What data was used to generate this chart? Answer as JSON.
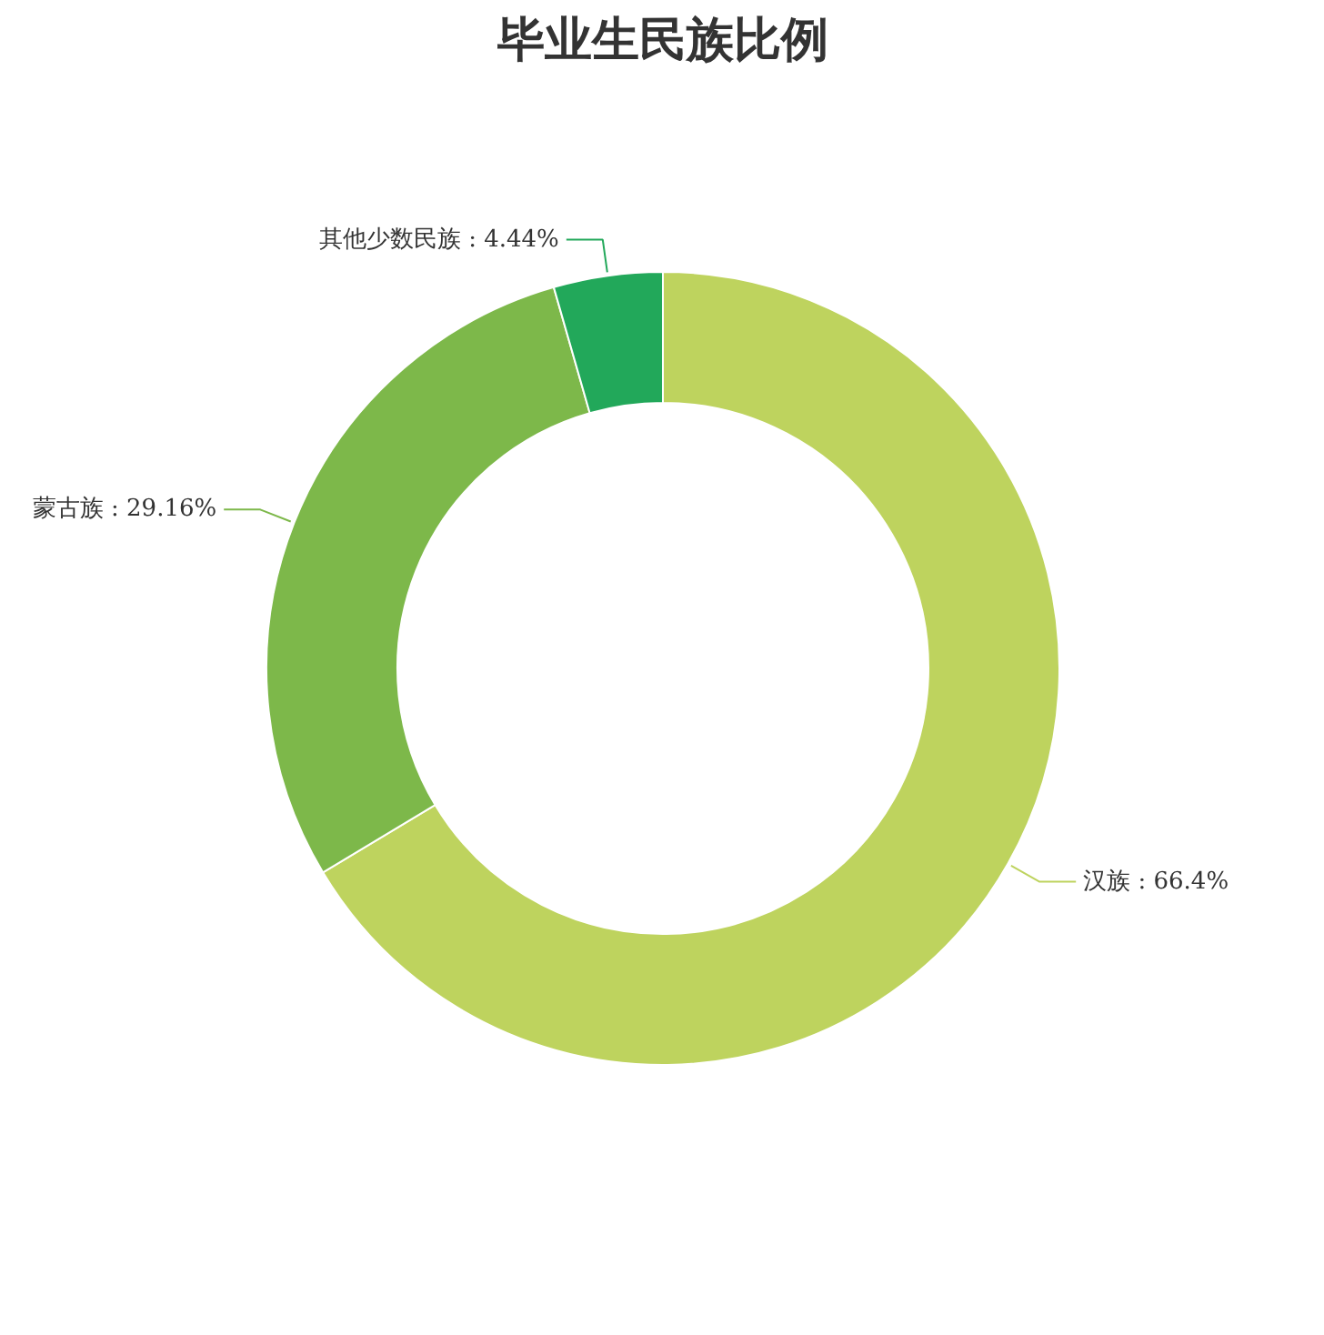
{
  "chart_data": {
    "type": "donut",
    "title": "毕业生民族比例",
    "categories": [
      "汉族",
      "蒙古族",
      "其他少数民族"
    ],
    "values": [
      66.4,
      29.16,
      4.44
    ],
    "value_labels": [
      "66.4%",
      "29.16%",
      "4.44%"
    ],
    "colors": [
      "#bed35e",
      "#7db84a",
      "#22a85a"
    ],
    "legend": false
  }
}
